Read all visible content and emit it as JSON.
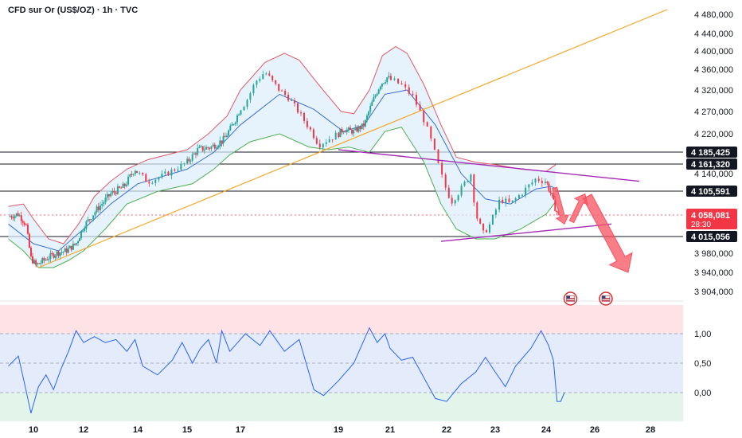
{
  "header": {
    "title": "CFD sur Or (US$/OZ) · 1h · TVC"
  },
  "colors": {
    "up": "#26a69a",
    "down": "#f23645",
    "trendline_orange": "#f7a21b",
    "channel_purple": "#a628b6",
    "bollinger_upper": "#e05a66",
    "bollinger_basis": "#3b6fd0",
    "bollinger_lower": "#4caf50",
    "rsi_line": "#2962ff",
    "level_line": "#131722",
    "arrow_red": "#f7525f",
    "rsi_overbought_zone": "#fde3e6",
    "rsi_neutral_zone": "#e4ecfc",
    "rsi_oversold_zone": "#e3f4ea"
  },
  "chart_data": [
    {
      "type": "candlestick",
      "title": "CFD sur Or (US$/OZ) · 1h · TVC",
      "x_tick_labels": [
        "10",
        "12",
        "14",
        "15",
        "17",
        "19",
        "21",
        "22",
        "23",
        "24",
        "26",
        "28"
      ],
      "x_tick_days": [
        10,
        12,
        14,
        15,
        17,
        19,
        21,
        22,
        23,
        24,
        26,
        28
      ],
      "y_tick_labels": [
        "4 480,000",
        "4 440,000",
        "4 400,000",
        "4 360,000",
        "4 320,000",
        "4 270,000",
        "4 220,000",
        "4 140,000",
        "3 980,000",
        "3 940,000",
        "3 904,000"
      ],
      "y_tick_values": [
        4480,
        4440,
        4400,
        4360,
        4320,
        4270,
        4220,
        4140,
        3980,
        3940,
        3904
      ],
      "horizontal_levels": [
        {
          "label": "4 185,425",
          "value": 4185.425
        },
        {
          "label": "4 161,320",
          "value": 4161.32
        },
        {
          "label": "4 105,591",
          "value": 4105.591
        },
        {
          "label": "4 015,056",
          "value": 4015.056
        }
      ],
      "current_price": {
        "label": "4 058,081",
        "value": 4058.081,
        "countdown": "28:30"
      },
      "price_path": [
        {
          "x": 9.0,
          "y": 4055
        },
        {
          "x": 9.4,
          "y": 4060
        },
        {
          "x": 9.7,
          "y": 4040
        },
        {
          "x": 9.9,
          "y": 3970
        },
        {
          "x": 10.1,
          "y": 3955
        },
        {
          "x": 10.5,
          "y": 3968
        },
        {
          "x": 10.9,
          "y": 3980
        },
        {
          "x": 11.3,
          "y": 3985
        },
        {
          "x": 11.7,
          "y": 4000
        },
        {
          "x": 12.0,
          "y": 4035
        },
        {
          "x": 12.5,
          "y": 4070
        },
        {
          "x": 13.0,
          "y": 4100
        },
        {
          "x": 13.5,
          "y": 4115
        },
        {
          "x": 13.9,
          "y": 4150
        },
        {
          "x": 14.2,
          "y": 4125
        },
        {
          "x": 14.5,
          "y": 4135
        },
        {
          "x": 15.0,
          "y": 4165
        },
        {
          "x": 15.4,
          "y": 4190
        },
        {
          "x": 15.9,
          "y": 4195
        },
        {
          "x": 16.4,
          "y": 4210
        },
        {
          "x": 16.8,
          "y": 4250
        },
        {
          "x": 17.1,
          "y": 4290
        },
        {
          "x": 17.3,
          "y": 4335
        },
        {
          "x": 17.5,
          "y": 4355
        },
        {
          "x": 17.7,
          "y": 4330
        },
        {
          "x": 18.0,
          "y": 4300
        },
        {
          "x": 18.3,
          "y": 4250
        },
        {
          "x": 18.6,
          "y": 4200
        },
        {
          "x": 18.9,
          "y": 4215
        },
        {
          "x": 19.2,
          "y": 4230
        },
        {
          "x": 19.6,
          "y": 4225
        },
        {
          "x": 20.0,
          "y": 4240
        },
        {
          "x": 20.3,
          "y": 4290
        },
        {
          "x": 20.6,
          "y": 4330
        },
        {
          "x": 20.9,
          "y": 4345
        },
        {
          "x": 21.2,
          "y": 4330
        },
        {
          "x": 21.4,
          "y": 4305
        },
        {
          "x": 21.6,
          "y": 4250
        },
        {
          "x": 21.8,
          "y": 4180
        },
        {
          "x": 21.95,
          "y": 4120
        },
        {
          "x": 22.1,
          "y": 4085
        },
        {
          "x": 22.3,
          "y": 4110
        },
        {
          "x": 22.5,
          "y": 4140
        },
        {
          "x": 22.6,
          "y": 4060
        },
        {
          "x": 22.75,
          "y": 4020
        },
        {
          "x": 22.9,
          "y": 4040
        },
        {
          "x": 23.1,
          "y": 4090
        },
        {
          "x": 23.3,
          "y": 4080
        },
        {
          "x": 23.5,
          "y": 4100
        },
        {
          "x": 23.8,
          "y": 4130
        },
        {
          "x": 24.0,
          "y": 4125
        },
        {
          "x": 24.2,
          "y": 4100
        },
        {
          "x": 24.35,
          "y": 4075
        },
        {
          "x": 24.5,
          "y": 4058
        }
      ],
      "bollinger_upper": [
        {
          "x": 9.0,
          "y": 4075
        },
        {
          "x": 9.6,
          "y": 4080
        },
        {
          "x": 10.0,
          "y": 4050
        },
        {
          "x": 10.6,
          "y": 4010
        },
        {
          "x": 11.2,
          "y": 4000
        },
        {
          "x": 11.8,
          "y": 4040
        },
        {
          "x": 12.4,
          "y": 4095
        },
        {
          "x": 13.0,
          "y": 4125
        },
        {
          "x": 13.6,
          "y": 4150
        },
        {
          "x": 14.2,
          "y": 4170
        },
        {
          "x": 15.0,
          "y": 4190
        },
        {
          "x": 15.8,
          "y": 4220
        },
        {
          "x": 16.5,
          "y": 4260
        },
        {
          "x": 17.0,
          "y": 4320
        },
        {
          "x": 17.5,
          "y": 4375
        },
        {
          "x": 17.9,
          "y": 4395
        },
        {
          "x": 18.2,
          "y": 4380
        },
        {
          "x": 18.6,
          "y": 4330
        },
        {
          "x": 19.1,
          "y": 4270
        },
        {
          "x": 19.6,
          "y": 4265
        },
        {
          "x": 20.2,
          "y": 4320
        },
        {
          "x": 20.7,
          "y": 4390
        },
        {
          "x": 21.1,
          "y": 4410
        },
        {
          "x": 21.3,
          "y": 4395
        },
        {
          "x": 21.6,
          "y": 4330
        },
        {
          "x": 21.9,
          "y": 4240
        },
        {
          "x": 22.2,
          "y": 4175
        },
        {
          "x": 22.6,
          "y": 4165
        },
        {
          "x": 23.0,
          "y": 4160
        },
        {
          "x": 23.5,
          "y": 4150
        },
        {
          "x": 24.0,
          "y": 4145
        },
        {
          "x": 24.4,
          "y": 4160
        }
      ],
      "bollinger_basis": [
        {
          "x": 9.0,
          "y": 4040
        },
        {
          "x": 10.0,
          "y": 4000
        },
        {
          "x": 11.0,
          "y": 3985
        },
        {
          "x": 12.0,
          "y": 4030
        },
        {
          "x": 13.0,
          "y": 4080
        },
        {
          "x": 14.0,
          "y": 4120
        },
        {
          "x": 15.0,
          "y": 4150
        },
        {
          "x": 16.0,
          "y": 4185
        },
        {
          "x": 17.0,
          "y": 4240
        },
        {
          "x": 17.8,
          "y": 4310
        },
        {
          "x": 18.5,
          "y": 4275
        },
        {
          "x": 19.2,
          "y": 4225
        },
        {
          "x": 20.0,
          "y": 4240
        },
        {
          "x": 20.8,
          "y": 4310
        },
        {
          "x": 21.3,
          "y": 4320
        },
        {
          "x": 21.8,
          "y": 4240
        },
        {
          "x": 22.3,
          "y": 4140
        },
        {
          "x": 22.8,
          "y": 4090
        },
        {
          "x": 23.3,
          "y": 4080
        },
        {
          "x": 23.8,
          "y": 4110
        },
        {
          "x": 24.2,
          "y": 4115
        },
        {
          "x": 24.4,
          "y": 4110
        }
      ],
      "bollinger_lower": [
        {
          "x": 9.0,
          "y": 4010
        },
        {
          "x": 9.6,
          "y": 3985
        },
        {
          "x": 10.2,
          "y": 3950
        },
        {
          "x": 10.8,
          "y": 3950
        },
        {
          "x": 11.4,
          "y": 3965
        },
        {
          "x": 12.0,
          "y": 3985
        },
        {
          "x": 12.8,
          "y": 4030
        },
        {
          "x": 13.6,
          "y": 4080
        },
        {
          "x": 14.4,
          "y": 4105
        },
        {
          "x": 15.2,
          "y": 4120
        },
        {
          "x": 16.0,
          "y": 4150
        },
        {
          "x": 16.6,
          "y": 4180
        },
        {
          "x": 17.2,
          "y": 4205
        },
        {
          "x": 17.8,
          "y": 4220
        },
        {
          "x": 18.4,
          "y": 4195
        },
        {
          "x": 18.8,
          "y": 4190
        },
        {
          "x": 19.4,
          "y": 4195
        },
        {
          "x": 20.2,
          "y": 4185
        },
        {
          "x": 20.8,
          "y": 4225
        },
        {
          "x": 21.2,
          "y": 4235
        },
        {
          "x": 21.6,
          "y": 4165
        },
        {
          "x": 21.9,
          "y": 4080
        },
        {
          "x": 22.2,
          "y": 4030
        },
        {
          "x": 22.6,
          "y": 4010
        },
        {
          "x": 23.0,
          "y": 4010
        },
        {
          "x": 23.5,
          "y": 4030
        },
        {
          "x": 24.0,
          "y": 4060
        },
        {
          "x": 24.4,
          "y": 4085
        }
      ],
      "trendline_orange": [
        {
          "x": 10.2,
          "y": 3950
        },
        {
          "x": 28.6,
          "y": 4490
        }
      ],
      "channel_upper_purple": [
        {
          "x": 19.0,
          "y": 4190
        },
        {
          "x": 27.6,
          "y": 4125
        }
      ],
      "channel_lower_purple": [
        {
          "x": 21.9,
          "y": 4005
        },
        {
          "x": 26.6,
          "y": 4040
        }
      ],
      "projection_arrows": [
        {
          "from": {
            "x": 24.35,
            "y": 4112
          },
          "to": {
            "x": 24.75,
            "y": 4040
          }
        },
        {
          "from": {
            "x": 25.05,
            "y": 4045
          },
          "to": {
            "x": 25.6,
            "y": 4100
          }
        },
        {
          "from": {
            "x": 25.7,
            "y": 4095
          },
          "to": {
            "x": 27.2,
            "y": 3940
          }
        }
      ],
      "event_markers": [
        {
          "x": 25.0
        },
        {
          "x": 26.4
        }
      ]
    },
    {
      "type": "line",
      "subtype": "oscillator",
      "y_tick_labels": [
        "1,00",
        "0,50",
        "0,00"
      ],
      "y_tick_values": [
        1.0,
        0.5,
        0.0
      ],
      "values": [
        {
          "x": 9.0,
          "y": 0.45
        },
        {
          "x": 9.4,
          "y": 0.62
        },
        {
          "x": 9.7,
          "y": 0.05
        },
        {
          "x": 9.9,
          "y": -0.35
        },
        {
          "x": 10.2,
          "y": 0.1
        },
        {
          "x": 10.5,
          "y": 0.3
        },
        {
          "x": 10.8,
          "y": 0.05
        },
        {
          "x": 11.1,
          "y": 0.4
        },
        {
          "x": 11.4,
          "y": 0.7
        },
        {
          "x": 11.7,
          "y": 1.05
        },
        {
          "x": 12.0,
          "y": 0.85
        },
        {
          "x": 12.4,
          "y": 0.95
        },
        {
          "x": 12.8,
          "y": 0.85
        },
        {
          "x": 13.2,
          "y": 0.9
        },
        {
          "x": 13.6,
          "y": 0.7
        },
        {
          "x": 13.9,
          "y": 0.9
        },
        {
          "x": 14.1,
          "y": 0.45
        },
        {
          "x": 14.4,
          "y": 0.3
        },
        {
          "x": 14.7,
          "y": 0.55
        },
        {
          "x": 14.9,
          "y": 0.85
        },
        {
          "x": 15.2,
          "y": 0.5
        },
        {
          "x": 15.5,
          "y": 0.75
        },
        {
          "x": 15.8,
          "y": 0.9
        },
        {
          "x": 16.1,
          "y": 0.5
        },
        {
          "x": 16.3,
          "y": 1.05
        },
        {
          "x": 16.6,
          "y": 0.7
        },
        {
          "x": 16.9,
          "y": 0.85
        },
        {
          "x": 17.1,
          "y": 1.0
        },
        {
          "x": 17.4,
          "y": 0.8
        },
        {
          "x": 17.6,
          "y": 1.05
        },
        {
          "x": 17.9,
          "y": 0.7
        },
        {
          "x": 18.2,
          "y": 0.9
        },
        {
          "x": 18.5,
          "y": 0.05
        },
        {
          "x": 18.7,
          "y": -0.05
        },
        {
          "x": 19.0,
          "y": 0.2
        },
        {
          "x": 19.3,
          "y": 0.35
        },
        {
          "x": 19.6,
          "y": 0.5
        },
        {
          "x": 19.9,
          "y": 0.8
        },
        {
          "x": 20.2,
          "y": 1.1
        },
        {
          "x": 20.5,
          "y": 0.85
        },
        {
          "x": 20.8,
          "y": 1.0
        },
        {
          "x": 21.0,
          "y": 0.75
        },
        {
          "x": 21.2,
          "y": 0.55
        },
        {
          "x": 21.4,
          "y": 0.6
        },
        {
          "x": 21.6,
          "y": 0.25
        },
        {
          "x": 21.8,
          "y": -0.1
        },
        {
          "x": 22.0,
          "y": -0.15
        },
        {
          "x": 22.3,
          "y": 0.15
        },
        {
          "x": 22.6,
          "y": 0.35
        },
        {
          "x": 22.8,
          "y": 0.6
        },
        {
          "x": 23.0,
          "y": 0.35
        },
        {
          "x": 23.2,
          "y": 0.1
        },
        {
          "x": 23.4,
          "y": 0.45
        },
        {
          "x": 23.7,
          "y": 0.75
        },
        {
          "x": 23.9,
          "y": 1.05
        },
        {
          "x": 24.1,
          "y": 0.8
        },
        {
          "x": 24.3,
          "y": 0.55
        },
        {
          "x": 24.45,
          "y": -0.15
        },
        {
          "x": 24.6,
          "y": -0.15
        },
        {
          "x": 24.75,
          "y": 0.0
        }
      ]
    }
  ]
}
